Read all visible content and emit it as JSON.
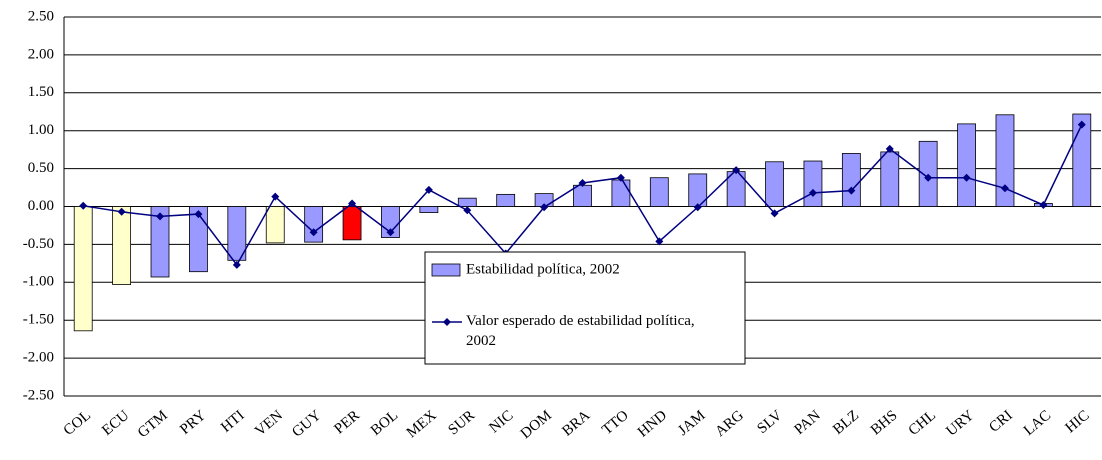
{
  "chart_data": {
    "type": "bar-line",
    "categories": [
      "COL",
      "ECU",
      "GTM",
      "PRY",
      "HTI",
      "VEN",
      "GUY",
      "PER",
      "BOL",
      "MEX",
      "SUR",
      "NIC",
      "DOM",
      "BRA",
      "TTO",
      "HND",
      "JAM",
      "ARG",
      "SLV",
      "PAN",
      "BLZ",
      "BHS",
      "CHL",
      "URY",
      "CRI",
      "LAC",
      "HIC"
    ],
    "series": [
      {
        "name": "Estabilidad política, 2002",
        "type": "bar",
        "color": "#9999ff",
        "colors": [
          "#ffffcc",
          "#ffffcc",
          "#9999ff",
          "#9999ff",
          "#9999ff",
          "#ffffcc",
          "#9999ff",
          "#ff0000",
          "#9999ff",
          "#9999ff",
          "#9999ff",
          "#9999ff",
          "#9999ff",
          "#9999ff",
          "#9999ff",
          "#9999ff",
          "#9999ff",
          "#9999ff",
          "#9999ff",
          "#9999ff",
          "#9999ff",
          "#9999ff",
          "#9999ff",
          "#9999ff",
          "#9999ff",
          "#9999ff",
          "#9999ff"
        ],
        "values": [
          -1.64,
          -1.03,
          -0.93,
          -0.86,
          -0.71,
          -0.48,
          -0.47,
          -0.44,
          -0.41,
          -0.08,
          0.11,
          0.16,
          0.17,
          0.28,
          0.35,
          0.38,
          0.43,
          0.46,
          0.59,
          0.6,
          0.7,
          0.72,
          0.86,
          1.09,
          1.21,
          0.04,
          1.22
        ]
      },
      {
        "name": "Valor esperado de estabilidad política, 2002",
        "type": "line",
        "color": "#000080",
        "values": [
          0.01,
          -0.07,
          -0.13,
          -0.1,
          -0.77,
          0.13,
          -0.34,
          0.04,
          -0.34,
          0.22,
          -0.05,
          -0.62,
          -0.01,
          0.31,
          0.38,
          -0.46,
          -0.01,
          0.48,
          -0.09,
          0.18,
          0.21,
          0.76,
          0.38,
          0.38,
          0.24,
          0.02,
          1.08
        ]
      }
    ],
    "ylim": [
      -2.5,
      2.5
    ],
    "yticks": [
      {
        "value": 2.5,
        "label": "2.50"
      },
      {
        "value": 2.0,
        "label": "2.00"
      },
      {
        "value": 1.5,
        "label": "1.50"
      },
      {
        "value": 1.0,
        "label": "1.00"
      },
      {
        "value": 0.5,
        "label": "0.50"
      },
      {
        "value": 0,
        "label": "0.00"
      },
      {
        "value": -0.5,
        "label": "-0.50"
      },
      {
        "value": -1.0,
        "label": "-1.00"
      },
      {
        "value": -1.5,
        "label": "-1.50"
      },
      {
        "value": -2.0,
        "label": "-2.00"
      },
      {
        "value": -2.5,
        "label": "-2.50"
      }
    ],
    "grid": true
  }
}
